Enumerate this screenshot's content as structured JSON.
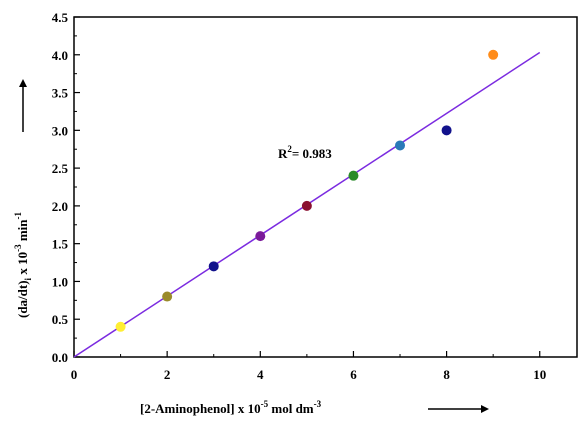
{
  "chart_data": {
    "type": "scatter",
    "xlabel": {
      "prefix": "[2-Aminophenol] x 10",
      "sup": "-5",
      "mid": " mol dm",
      "sup2": "-3"
    },
    "ylabel": {
      "p1": "(da/dt)",
      "sub": "i",
      "p2": " x 10",
      "sup": "-3",
      "p3": " min",
      "sup2": "-1"
    },
    "annotation": {
      "base": "R",
      "sup": "2",
      "rest": "= 0.983"
    },
    "xlim": [
      0,
      10.8
    ],
    "ylim": [
      0,
      4.5
    ],
    "x_ticks": [
      0,
      2,
      4,
      6,
      8,
      10
    ],
    "y_ticks": [
      0.0,
      0.5,
      1.0,
      1.5,
      2.0,
      2.5,
      3.0,
      3.5,
      4.0,
      4.5
    ],
    "points": [
      {
        "x": 1,
        "y": 0.4,
        "color": "#ffee33"
      },
      {
        "x": 2,
        "y": 0.8,
        "color": "#9a8a2a"
      },
      {
        "x": 3,
        "y": 1.2,
        "color": "#12128c"
      },
      {
        "x": 4,
        "y": 1.6,
        "color": "#7a1a9a"
      },
      {
        "x": 5,
        "y": 2.0,
        "color": "#8a1030"
      },
      {
        "x": 6,
        "y": 2.4,
        "color": "#2a8a2a"
      },
      {
        "x": 7,
        "y": 2.8,
        "color": "#2a7ab8"
      },
      {
        "x": 8,
        "y": 3.0,
        "color": "#12128c"
      },
      {
        "x": 9,
        "y": 4.0,
        "color": "#ff8c1a"
      }
    ],
    "fit_line": {
      "x": [
        0,
        10
      ],
      "y": [
        0,
        4.03
      ],
      "color": "#7b2be0"
    },
    "grid": false,
    "legend": "none"
  }
}
